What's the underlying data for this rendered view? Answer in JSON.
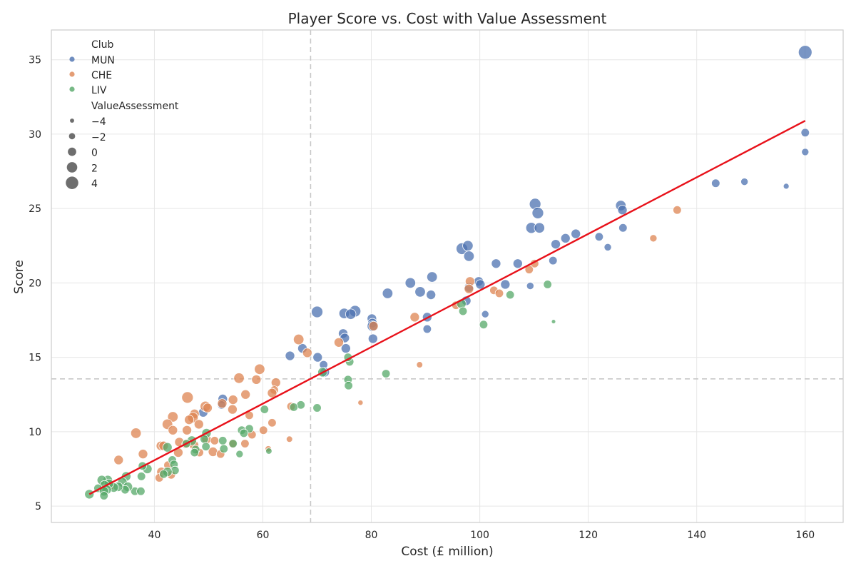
{
  "chart_data": {
    "type": "scatter",
    "title": "Player Score vs. Cost with Value Assessment",
    "xlabel": "Cost (£ million)",
    "ylabel": "Score",
    "xlim": [
      21,
      167
    ],
    "ylim": [
      3.9,
      37
    ],
    "xticks": [
      40,
      60,
      80,
      100,
      120,
      140,
      160
    ],
    "yticks": [
      5,
      10,
      15,
      20,
      25,
      30,
      35
    ],
    "grid": true,
    "legend_position": "top-left",
    "hue_title": "Club",
    "size_title": "ValueAssessment",
    "size_legend": [
      {
        "label": "−4",
        "value": -4
      },
      {
        "label": "−2",
        "value": -2
      },
      {
        "label": "0",
        "value": 0
      },
      {
        "label": "2",
        "value": 2
      },
      {
        "label": "4",
        "value": 4
      }
    ],
    "size_range": [
      -5,
      5
    ],
    "ref_lines": {
      "x_mean": 68.8,
      "y_mean": 13.55
    },
    "trend_line": {
      "x": [
        28,
        160
      ],
      "y": [
        5.8,
        30.9
      ],
      "color": "#e8111a"
    },
    "series": [
      {
        "name": "MUN",
        "color": "#4c72b0",
        "points": [
          [
            160,
            35.5,
            5
          ],
          [
            160,
            30.1,
            0
          ],
          [
            160,
            28.8,
            -1
          ],
          [
            156.5,
            26.5,
            -2.5
          ],
          [
            148.8,
            26.8,
            -1
          ],
          [
            143.5,
            26.7,
            0
          ],
          [
            126,
            25.2,
            2
          ],
          [
            126.3,
            24.9,
            1
          ],
          [
            126.4,
            23.7,
            0
          ],
          [
            110.2,
            25.3,
            3
          ],
          [
            110.7,
            24.7,
            3
          ],
          [
            109.5,
            23.7,
            2.5
          ],
          [
            111,
            23.7,
            2
          ],
          [
            117.7,
            23.3,
            1
          ],
          [
            115.8,
            23,
            1
          ],
          [
            122,
            23.1,
            0
          ],
          [
            114,
            22.6,
            1
          ],
          [
            123.6,
            22.4,
            -1
          ],
          [
            113.5,
            21.5,
            0
          ],
          [
            96.7,
            22.3,
            3
          ],
          [
            97.8,
            22.5,
            2
          ],
          [
            98,
            21.8,
            2
          ],
          [
            103,
            21.3,
            1
          ],
          [
            107,
            21.3,
            1
          ],
          [
            87.2,
            20,
            2
          ],
          [
            91.2,
            20.4,
            2
          ],
          [
            99.8,
            20.1,
            1
          ],
          [
            100.1,
            19.9,
            1
          ],
          [
            104.7,
            19.9,
            1
          ],
          [
            109.3,
            19.8,
            -1
          ],
          [
            89,
            19.4,
            2
          ],
          [
            91,
            19.2,
            1
          ],
          [
            83,
            19.3,
            2
          ],
          [
            98,
            19.7,
            1
          ],
          [
            97.5,
            18.8,
            1
          ],
          [
            101,
            17.9,
            -1
          ],
          [
            70,
            18.05,
            3
          ],
          [
            75,
            17.95,
            2
          ],
          [
            77,
            18.1,
            3
          ],
          [
            76.2,
            17.9,
            2
          ],
          [
            80.1,
            17.6,
            1
          ],
          [
            80.2,
            17.3,
            1
          ],
          [
            80.2,
            17.1,
            2
          ],
          [
            80.3,
            16.25,
            1
          ],
          [
            90.3,
            17.7,
            1
          ],
          [
            90.3,
            16.9,
            0
          ],
          [
            74.8,
            16.6,
            1
          ],
          [
            75.1,
            16.3,
            1
          ],
          [
            67.3,
            15.6,
            1
          ],
          [
            75.3,
            15.6,
            1
          ],
          [
            65,
            15.1,
            1
          ],
          [
            70.1,
            15,
            1
          ],
          [
            71.2,
            14.5,
            0
          ],
          [
            71.4,
            14,
            1
          ],
          [
            52.6,
            12.2,
            1
          ],
          [
            52.4,
            11.8,
            0
          ],
          [
            49,
            11.3,
            1
          ]
        ]
      },
      {
        "name": "CHE",
        "color": "#dd8452",
        "points": [
          [
            136.4,
            24.9,
            0
          ],
          [
            132,
            23,
            -1
          ],
          [
            110.1,
            21.3,
            0
          ],
          [
            109.1,
            20.9,
            0
          ],
          [
            98.2,
            20.1,
            1
          ],
          [
            98,
            19.6,
            1
          ],
          [
            102.6,
            19.5,
            0
          ],
          [
            103.6,
            19.3,
            0
          ],
          [
            95.6,
            18.5,
            0
          ],
          [
            88,
            17.7,
            1
          ],
          [
            80.4,
            17.1,
            1
          ],
          [
            88.9,
            14.5,
            -2
          ],
          [
            78,
            11.95,
            -3
          ],
          [
            74,
            16,
            1
          ],
          [
            66.6,
            16.2,
            2
          ],
          [
            68.2,
            15.3,
            1
          ],
          [
            59.4,
            14.2,
            2
          ],
          [
            55.6,
            13.6,
            2
          ],
          [
            58.8,
            13.5,
            1
          ],
          [
            62.4,
            13.3,
            1
          ],
          [
            62.1,
            12.8,
            0
          ],
          [
            61.7,
            12.6,
            1
          ],
          [
            56.8,
            12.5,
            1
          ],
          [
            54.5,
            12.15,
            1
          ],
          [
            46.1,
            12.3,
            3
          ],
          [
            52.5,
            11.9,
            1
          ],
          [
            49.4,
            11.7,
            2
          ],
          [
            49.8,
            11.6,
            1
          ],
          [
            54.4,
            11.5,
            1
          ],
          [
            47.4,
            11.2,
            1
          ],
          [
            47.1,
            10.95,
            2
          ],
          [
            43.4,
            11,
            2
          ],
          [
            46.4,
            10.8,
            1
          ],
          [
            48.2,
            10.5,
            1
          ],
          [
            42.4,
            10.5,
            2
          ],
          [
            43.4,
            10.1,
            1
          ],
          [
            46,
            10.1,
            1
          ],
          [
            36.6,
            9.9,
            2
          ],
          [
            57.5,
            11.1,
            0
          ],
          [
            61.7,
            10.6,
            0
          ],
          [
            60.1,
            10.1,
            0
          ],
          [
            58,
            9.8,
            0
          ],
          [
            64.9,
            9.5,
            -2
          ],
          [
            61,
            8.85,
            -2
          ],
          [
            49.6,
            9.5,
            1
          ],
          [
            51.1,
            9.4,
            0
          ],
          [
            54.4,
            9.2,
            0
          ],
          [
            56.7,
            9.2,
            0
          ],
          [
            44.6,
            9.3,
            1
          ],
          [
            47.3,
            9.1,
            1
          ],
          [
            41.2,
            9.05,
            1
          ],
          [
            41.7,
            9.05,
            1
          ],
          [
            45.8,
            9.15,
            0
          ],
          [
            48.3,
            8.6,
            0
          ],
          [
            44.4,
            8.6,
            1
          ],
          [
            37.9,
            8.5,
            1
          ],
          [
            50.8,
            8.65,
            1
          ],
          [
            52.2,
            8.5,
            0
          ],
          [
            33.4,
            8.1,
            1
          ],
          [
            42.5,
            7.75,
            0
          ],
          [
            41.3,
            7.3,
            1
          ],
          [
            40.9,
            6.9,
            0
          ],
          [
            43.1,
            7.1,
            0
          ],
          [
            32,
            6.4,
            0
          ],
          [
            65.2,
            11.7,
            0
          ]
        ]
      },
      {
        "name": "LIV",
        "color": "#55a868",
        "points": [
          [
            112.5,
            19.9,
            0
          ],
          [
            105.6,
            19.2,
            0
          ],
          [
            96.6,
            18.6,
            1
          ],
          [
            96.9,
            18.1,
            0
          ],
          [
            100.7,
            17.2,
            0
          ],
          [
            113.6,
            17.4,
            -4
          ],
          [
            76,
            14.7,
            0
          ],
          [
            75.7,
            15,
            0
          ],
          [
            71,
            14,
            1
          ],
          [
            75.7,
            13.5,
            0
          ],
          [
            75.8,
            13.1,
            0
          ],
          [
            82.7,
            13.9,
            0
          ],
          [
            67,
            11.8,
            0
          ],
          [
            65.7,
            11.65,
            0
          ],
          [
            70,
            11.6,
            0
          ],
          [
            60.3,
            11.5,
            0
          ],
          [
            57.5,
            10.2,
            0
          ],
          [
            56.1,
            10.1,
            0
          ],
          [
            56.5,
            9.9,
            0
          ],
          [
            52.6,
            9.4,
            0
          ],
          [
            54.5,
            9.2,
            0
          ],
          [
            55.7,
            8.5,
            -1
          ],
          [
            61.1,
            8.7,
            -2
          ],
          [
            52.8,
            8.85,
            0
          ],
          [
            49.6,
            9.9,
            1
          ],
          [
            49.2,
            9.5,
            0
          ],
          [
            49.5,
            9.0,
            0
          ],
          [
            46.9,
            9.4,
            1
          ],
          [
            47.6,
            8.8,
            0
          ],
          [
            47.4,
            8.6,
            0
          ],
          [
            45.9,
            9.2,
            0
          ],
          [
            42.4,
            8.95,
            1
          ],
          [
            43.3,
            8.1,
            0
          ],
          [
            43.6,
            7.8,
            0
          ],
          [
            43.8,
            7.4,
            0
          ],
          [
            42.4,
            7.3,
            1
          ],
          [
            41.7,
            7.15,
            0
          ],
          [
            38.7,
            7.5,
            1
          ],
          [
            37.8,
            7.7,
            0
          ],
          [
            37.6,
            7,
            0
          ],
          [
            36.4,
            6.0,
            0
          ],
          [
            37.5,
            6.0,
            0
          ],
          [
            34.8,
            7,
            1
          ],
          [
            34.1,
            6.6,
            1
          ],
          [
            35.1,
            6.3,
            1
          ],
          [
            34.6,
            6.1,
            0
          ],
          [
            33.3,
            6.3,
            1
          ],
          [
            32.5,
            6.25,
            1
          ],
          [
            31.4,
            6.75,
            1
          ],
          [
            30.3,
            6.75,
            1
          ],
          [
            31.6,
            6.5,
            1
          ],
          [
            30.8,
            6.4,
            1
          ],
          [
            29.6,
            6.2,
            0
          ],
          [
            31.2,
            6.1,
            1
          ],
          [
            30.7,
            6,
            1
          ],
          [
            30.7,
            5.7,
            0
          ],
          [
            28,
            5.8,
            1
          ]
        ]
      }
    ]
  }
}
